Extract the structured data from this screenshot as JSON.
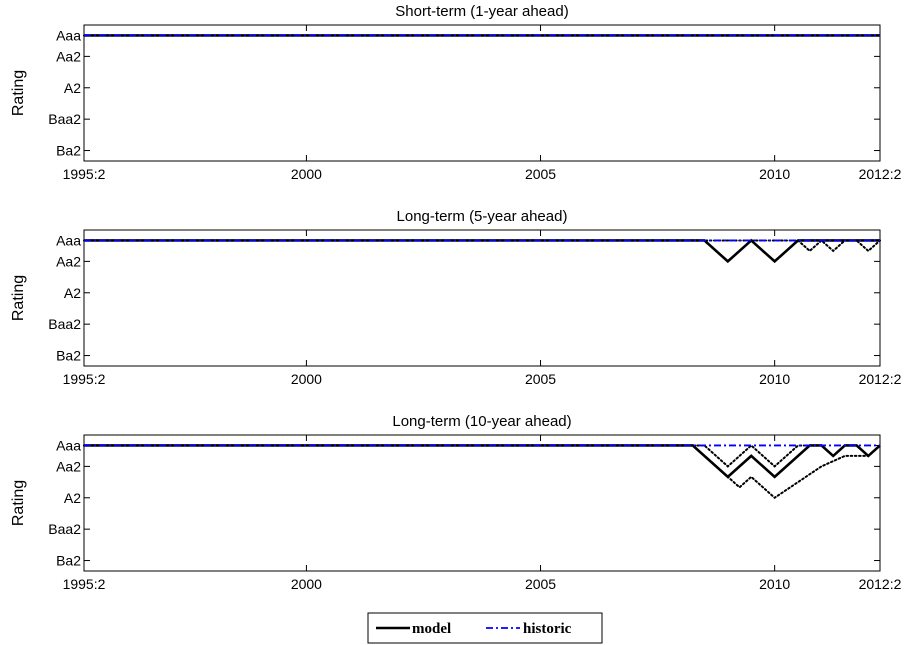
{
  "chart_data": [
    {
      "type": "line",
      "title": "Short-term (1-year ahead)",
      "ylabel": "Rating",
      "xlabel": "",
      "x_range": [
        1995.25,
        2012.25
      ],
      "x_ticks": [
        1995.25,
        2000,
        2005,
        2010,
        2012.25
      ],
      "x_tick_labels": [
        "1995:2",
        "2000",
        "2005",
        "2010",
        "2012:2"
      ],
      "y_ticks": [
        1,
        3,
        6,
        9,
        12
      ],
      "y_tick_labels": [
        "Aaa",
        "Aa2",
        "A2",
        "Baa2",
        "Ba2"
      ],
      "ylim": [
        0,
        13
      ],
      "y_reversed": true,
      "series": [
        {
          "name": "model",
          "color": "#000000",
          "style": "solid",
          "width": 2.6,
          "points": [
            [
              1995.25,
              1
            ],
            [
              2012.25,
              1
            ]
          ]
        },
        {
          "name": "",
          "color": "#000000",
          "style": "dotted",
          "width": 2,
          "points": [
            [
              1995.25,
              1
            ],
            [
              2012.25,
              1
            ]
          ]
        },
        {
          "name": "historic",
          "color": "#0000ff",
          "style": "dashdot",
          "width": 1.8,
          "points": [
            [
              1995.25,
              1
            ],
            [
              2012.25,
              1
            ]
          ]
        }
      ]
    },
    {
      "type": "line",
      "title": "Long-term (5-year ahead)",
      "ylabel": "Rating",
      "xlabel": "",
      "x_range": [
        1995.25,
        2012.25
      ],
      "x_ticks": [
        1995.25,
        2000,
        2005,
        2010,
        2012.25
      ],
      "x_tick_labels": [
        "1995:2",
        "2000",
        "2005",
        "2010",
        "2012:2"
      ],
      "y_ticks": [
        1,
        3,
        6,
        9,
        12
      ],
      "y_tick_labels": [
        "Aaa",
        "Aa2",
        "A2",
        "Baa2",
        "Ba2"
      ],
      "ylim": [
        0,
        13
      ],
      "y_reversed": true,
      "series": [
        {
          "name": "model",
          "color": "#000000",
          "style": "solid",
          "width": 2.6,
          "points": [
            [
              1995.25,
              1
            ],
            [
              2008.5,
              1
            ],
            [
              2009.0,
              3
            ],
            [
              2009.5,
              1
            ],
            [
              2010.0,
              3
            ],
            [
              2010.5,
              1
            ],
            [
              2012.25,
              1
            ]
          ]
        },
        {
          "name": "",
          "color": "#000000",
          "style": "dotted",
          "width": 2,
          "points": [
            [
              1995.25,
              1
            ],
            [
              2010.5,
              1
            ],
            [
              2010.75,
              2
            ],
            [
              2011.0,
              1
            ],
            [
              2011.25,
              2
            ],
            [
              2011.5,
              1
            ],
            [
              2011.75,
              1
            ],
            [
              2012.0,
              2
            ],
            [
              2012.25,
              1
            ]
          ]
        },
        {
          "name": "historic",
          "color": "#0000ff",
          "style": "dashdot",
          "width": 1.8,
          "points": [
            [
              1995.25,
              1
            ],
            [
              2012.25,
              1
            ]
          ]
        }
      ]
    },
    {
      "type": "line",
      "title": "Long-term (10-year ahead)",
      "ylabel": "Rating",
      "xlabel": "",
      "x_range": [
        1995.25,
        2012.25
      ],
      "x_ticks": [
        1995.25,
        2000,
        2005,
        2010,
        2012.25
      ],
      "x_tick_labels": [
        "1995:2",
        "2000",
        "2005",
        "2010",
        "2012:2"
      ],
      "y_ticks": [
        1,
        3,
        6,
        9,
        12
      ],
      "y_tick_labels": [
        "Aaa",
        "Aa2",
        "A2",
        "Baa2",
        "Ba2"
      ],
      "ylim": [
        0,
        13
      ],
      "y_reversed": true,
      "series": [
        {
          "name": "model",
          "color": "#000000",
          "style": "solid",
          "width": 2.6,
          "points": [
            [
              1995.25,
              1
            ],
            [
              2008.25,
              1
            ],
            [
              2009.0,
              4
            ],
            [
              2009.5,
              2
            ],
            [
              2010.0,
              4
            ],
            [
              2010.75,
              1
            ],
            [
              2011.0,
              1
            ],
            [
              2011.25,
              2
            ],
            [
              2011.5,
              1
            ],
            [
              2011.75,
              1
            ],
            [
              2012.0,
              2
            ],
            [
              2012.25,
              1
            ]
          ]
        },
        {
          "name": "",
          "color": "#000000",
          "style": "dotted",
          "width": 2,
          "points": [
            [
              1995.25,
              1
            ],
            [
              2008.5,
              1
            ],
            [
              2009.0,
              3
            ],
            [
              2009.5,
              1
            ],
            [
              2010.0,
              3
            ],
            [
              2010.5,
              1
            ],
            [
              2011.0,
              1
            ],
            [
              2011.25,
              2
            ],
            [
              2011.5,
              1
            ],
            [
              2011.75,
              1
            ],
            [
              2012.0,
              2
            ],
            [
              2012.25,
              1
            ]
          ]
        },
        {
          "name": "",
          "color": "#000000",
          "style": "dotted",
          "width": 2,
          "points": [
            [
              1995.25,
              1
            ],
            [
              2008.25,
              1
            ],
            [
              2009.25,
              5
            ],
            [
              2009.5,
              4
            ],
            [
              2010.0,
              6
            ],
            [
              2011.0,
              3
            ],
            [
              2011.5,
              2
            ],
            [
              2012.0,
              2
            ],
            [
              2012.25,
              1
            ]
          ]
        },
        {
          "name": "historic",
          "color": "#0000ff",
          "style": "dashdot",
          "width": 1.8,
          "points": [
            [
              1995.25,
              1
            ],
            [
              2012.25,
              1
            ]
          ]
        }
      ]
    }
  ],
  "legend": {
    "position": "bottom-center",
    "items": [
      {
        "label": "model",
        "color": "#000000",
        "style": "solid"
      },
      {
        "label": "historic",
        "color": "#0000ff",
        "style": "dashdot"
      }
    ]
  }
}
